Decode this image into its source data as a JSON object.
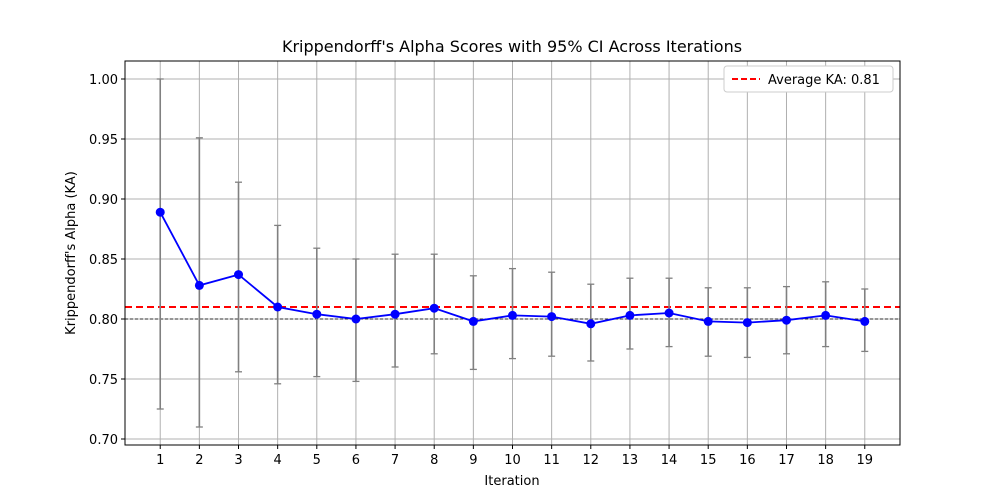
{
  "chart_data": {
    "type": "line",
    "title": "Krippendorff's Alpha Scores with 95% CI Across Iterations",
    "xlabel": "Iteration",
    "ylabel": "Krippendorff's Alpha (KA)",
    "x": [
      1,
      2,
      3,
      4,
      5,
      6,
      7,
      8,
      9,
      10,
      11,
      12,
      13,
      14,
      15,
      16,
      17,
      18,
      19
    ],
    "xlim": [
      0.1,
      19.9
    ],
    "ylim": [
      0.695,
      1.015
    ],
    "yticks": [
      0.7,
      0.75,
      0.8,
      0.85,
      0.9,
      0.95,
      1.0
    ],
    "ytick_labels": [
      "0.70",
      "0.75",
      "0.80",
      "0.85",
      "0.90",
      "0.95",
      "1.00"
    ],
    "grid": true,
    "series": [
      {
        "values": [
          0.889,
          0.828,
          0.837,
          0.81,
          0.804,
          0.8,
          0.804,
          0.809,
          0.798,
          0.803,
          0.802,
          0.796,
          0.803,
          0.805,
          0.798,
          0.797,
          0.799,
          0.803,
          0.798
        ],
        "ci_lower": [
          0.725,
          0.71,
          0.756,
          0.746,
          0.752,
          0.748,
          0.76,
          0.771,
          0.758,
          0.767,
          0.769,
          0.765,
          0.775,
          0.777,
          0.769,
          0.768,
          0.771,
          0.777,
          0.773
        ],
        "ci_upper": [
          1.0,
          0.951,
          0.914,
          0.878,
          0.859,
          0.85,
          0.854,
          0.854,
          0.836,
          0.842,
          0.839,
          0.829,
          0.834,
          0.834,
          0.826,
          0.826,
          0.827,
          0.831,
          0.825
        ],
        "color": "#0000ff",
        "errorbar_color": "#808080"
      }
    ],
    "reference_lines": [
      {
        "y": 0.81,
        "label": "Average KA: 0.81",
        "color": "#ff0000",
        "style": "dashed"
      },
      {
        "y": 0.8,
        "color": "#000000",
        "style": "dashed"
      }
    ],
    "legend": {
      "position": "top-right",
      "entries": [
        "Average KA: 0.81"
      ]
    }
  }
}
